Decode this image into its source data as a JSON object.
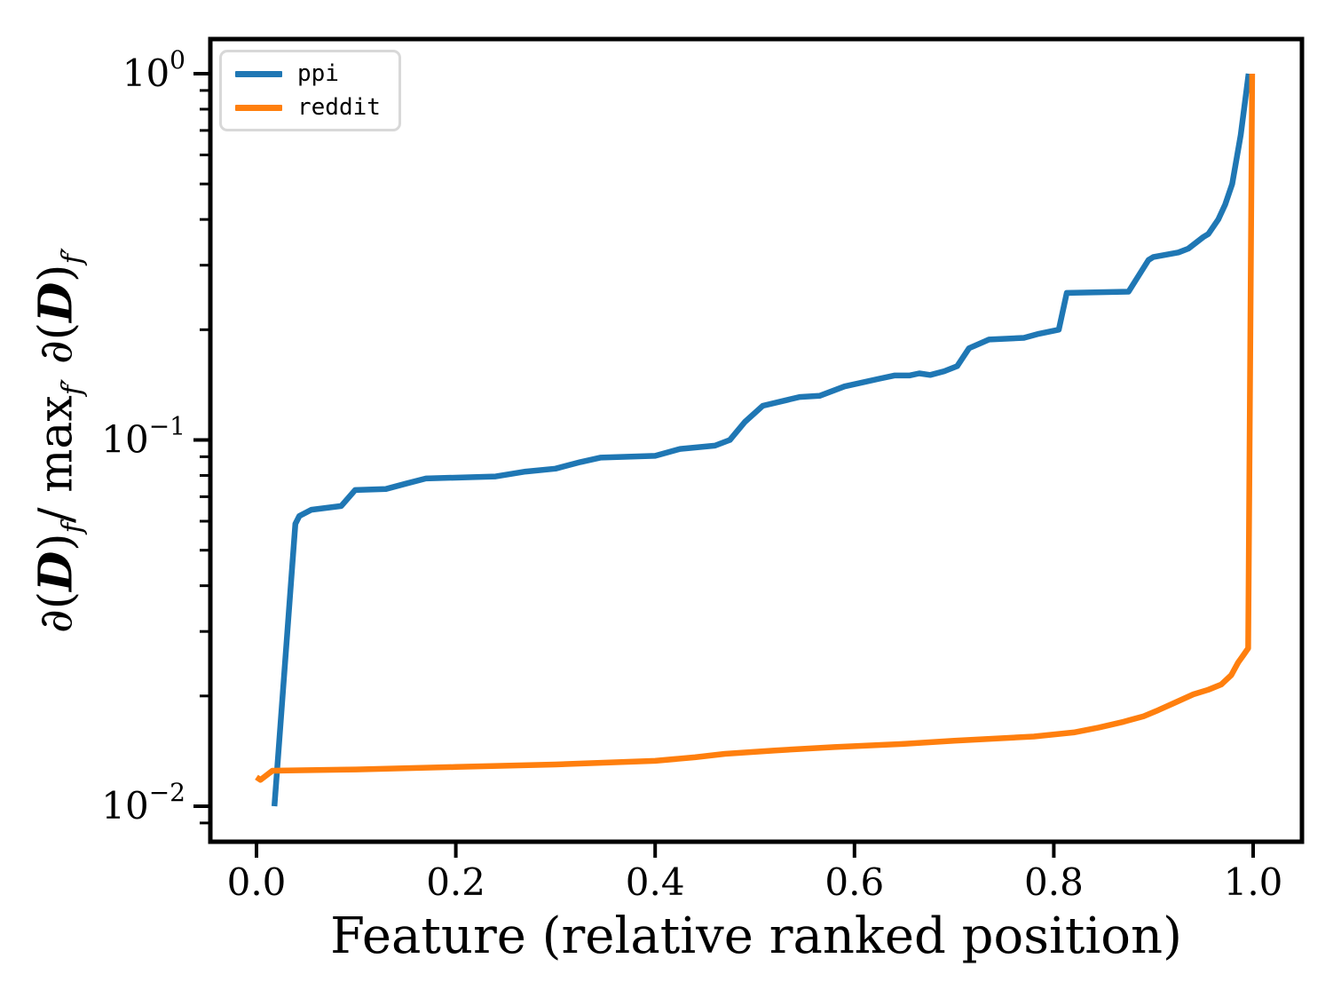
{
  "figure": {
    "background_color": "#ffffff",
    "spine_color": "#000000"
  },
  "chart_data": {
    "type": "line",
    "title": "",
    "xlabel": "Feature (relative ranked position)",
    "ylabel_plain": "∂(D)f / maxf′ ∂(D)f′",
    "ylabel_segments": [
      {
        "text": "∂(",
        "style": "normal"
      },
      {
        "text": "D",
        "style": "scriptD"
      },
      {
        "text": ")",
        "style": "normal"
      },
      {
        "text": "f",
        "style": "sub"
      },
      {
        "text": "/ max",
        "style": "normal"
      },
      {
        "text": "f′",
        "style": "sub"
      },
      {
        "text": " ∂(",
        "style": "normal"
      },
      {
        "text": "D",
        "style": "scriptD"
      },
      {
        "text": ")",
        "style": "normal"
      },
      {
        "text": "f′",
        "style": "sub"
      }
    ],
    "yscale": "log",
    "xlim": [
      -0.046,
      1.049
    ],
    "ylim": [
      0.008,
      1.243
    ],
    "grid": false,
    "x_ticks": [
      0.0,
      0.2,
      0.4,
      0.6,
      0.8,
      1.0
    ],
    "x_tick_labels": [
      "0.0",
      "0.2",
      "0.4",
      "0.6",
      "0.8",
      "1.0"
    ],
    "y_ticks": [
      {
        "value": 1,
        "base": "10",
        "exp": "0"
      },
      {
        "value": 0.1,
        "base": "10",
        "exp": "−1"
      },
      {
        "value": 0.01,
        "base": "10",
        "exp": "−2"
      }
    ],
    "y_minor_ticks": [
      0.9,
      0.8,
      0.7,
      0.6,
      0.5,
      0.4,
      0.3,
      0.2,
      0.09,
      0.08,
      0.07,
      0.06,
      0.05,
      0.04,
      0.03,
      0.02,
      0.009
    ],
    "legend": {
      "position": "upper-left",
      "items": [
        {
          "label": "ppi",
          "color": "#1f77b4"
        },
        {
          "label": "reddit",
          "color": "#ff7f0e"
        }
      ]
    },
    "series": [
      {
        "name": "ppi",
        "color": "#1f77b4",
        "points": [
          [
            0.018,
            0.01
          ],
          [
            0.039,
            0.059
          ],
          [
            0.043,
            0.062
          ],
          [
            0.055,
            0.0645
          ],
          [
            0.085,
            0.066
          ],
          [
            0.099,
            0.073
          ],
          [
            0.13,
            0.0735
          ],
          [
            0.15,
            0.076
          ],
          [
            0.17,
            0.0785
          ],
          [
            0.24,
            0.0795
          ],
          [
            0.27,
            0.082
          ],
          [
            0.3,
            0.0835
          ],
          [
            0.325,
            0.087
          ],
          [
            0.345,
            0.0895
          ],
          [
            0.4,
            0.0905
          ],
          [
            0.425,
            0.0945
          ],
          [
            0.46,
            0.0965
          ],
          [
            0.475,
            0.1
          ],
          [
            0.49,
            0.112
          ],
          [
            0.508,
            0.124
          ],
          [
            0.545,
            0.131
          ],
          [
            0.565,
            0.132
          ],
          [
            0.59,
            0.14
          ],
          [
            0.625,
            0.147
          ],
          [
            0.64,
            0.15
          ],
          [
            0.655,
            0.15
          ],
          [
            0.665,
            0.152
          ],
          [
            0.676,
            0.1505
          ],
          [
            0.69,
            0.154
          ],
          [
            0.703,
            0.159
          ],
          [
            0.715,
            0.178
          ],
          [
            0.735,
            0.188
          ],
          [
            0.77,
            0.19
          ],
          [
            0.785,
            0.195
          ],
          [
            0.805,
            0.2
          ],
          [
            0.813,
            0.252
          ],
          [
            0.875,
            0.254
          ],
          [
            0.895,
            0.31
          ],
          [
            0.9,
            0.316
          ],
          [
            0.925,
            0.325
          ],
          [
            0.935,
            0.333
          ],
          [
            0.95,
            0.358
          ],
          [
            0.955,
            0.365
          ],
          [
            0.965,
            0.4
          ],
          [
            0.972,
            0.44
          ],
          [
            0.979,
            0.5
          ],
          [
            0.9875,
            0.68
          ],
          [
            0.9955,
            1.0
          ]
        ]
      },
      {
        "name": "reddit",
        "color": "#ff7f0e",
        "points": [
          [
            0.0,
            0.012
          ],
          [
            0.004,
            0.0118
          ],
          [
            0.016,
            0.0125
          ],
          [
            0.1,
            0.0126
          ],
          [
            0.2,
            0.0128
          ],
          [
            0.3,
            0.013
          ],
          [
            0.4,
            0.0133
          ],
          [
            0.44,
            0.0136
          ],
          [
            0.47,
            0.0139
          ],
          [
            0.52,
            0.0142
          ],
          [
            0.58,
            0.0145
          ],
          [
            0.65,
            0.0148
          ],
          [
            0.7,
            0.0151
          ],
          [
            0.78,
            0.0155
          ],
          [
            0.82,
            0.0159
          ],
          [
            0.845,
            0.0164
          ],
          [
            0.87,
            0.017
          ],
          [
            0.89,
            0.0176
          ],
          [
            0.905,
            0.0183
          ],
          [
            0.92,
            0.0191
          ],
          [
            0.94,
            0.0202
          ],
          [
            0.955,
            0.0208
          ],
          [
            0.968,
            0.0215
          ],
          [
            0.978,
            0.0228
          ],
          [
            0.985,
            0.0247
          ],
          [
            0.99,
            0.0258
          ],
          [
            0.995,
            0.027
          ],
          [
            0.999,
            1.0
          ]
        ]
      }
    ]
  }
}
